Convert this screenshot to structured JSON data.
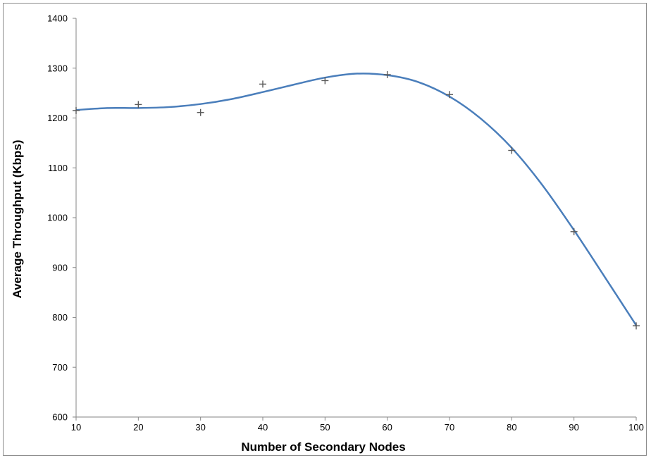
{
  "chart_data": {
    "type": "scatter",
    "title": "",
    "xlabel": "Number of Secondary Nodes",
    "ylabel": "Average Throughput (Kbps)",
    "xlim": [
      10,
      100
    ],
    "ylim": [
      600,
      1400
    ],
    "x_ticks": [
      10,
      20,
      30,
      40,
      50,
      60,
      70,
      80,
      90,
      100
    ],
    "y_ticks": [
      600,
      700,
      800,
      900,
      1000,
      1100,
      1200,
      1300,
      1400
    ],
    "grid": false,
    "legend": "none",
    "series": [
      {
        "marker": "plus",
        "color": "#595959",
        "x": [
          10,
          20,
          30,
          40,
          50,
          60,
          70,
          80,
          90,
          100
        ],
        "y": [
          1215,
          1227,
          1211,
          1268,
          1275,
          1287,
          1247,
          1135,
          972,
          783
        ]
      }
    ],
    "trendline": {
      "type": "polynomial",
      "color": "#4a7ebb",
      "x": [
        10,
        15,
        20,
        25,
        30,
        35,
        40,
        45,
        50,
        55,
        60,
        65,
        70,
        75,
        80,
        85,
        90,
        95,
        100
      ],
      "y": [
        1216,
        1220,
        1220,
        1222,
        1228,
        1238,
        1252,
        1267,
        1281,
        1289,
        1286,
        1272,
        1243,
        1199,
        1140,
        1064,
        975,
        880,
        784
      ]
    }
  }
}
